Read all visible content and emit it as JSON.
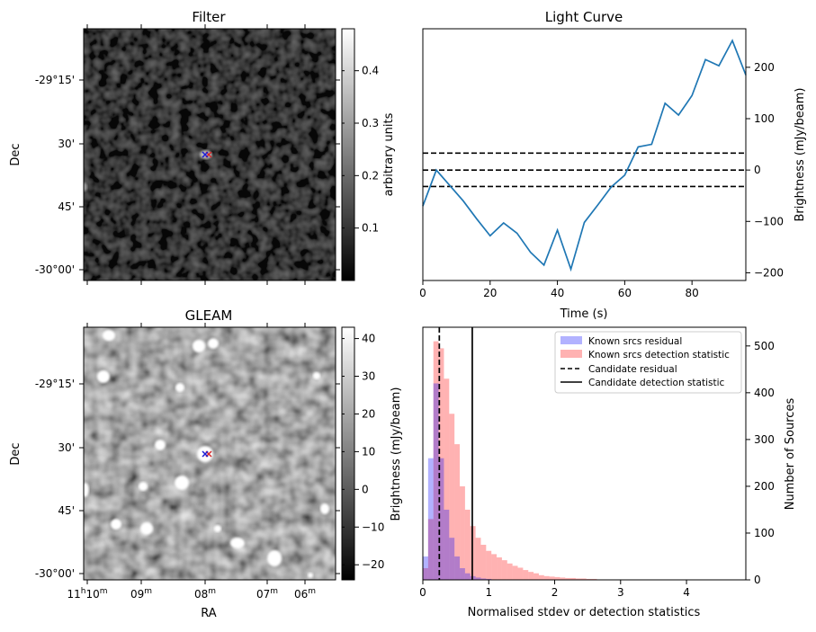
{
  "panels": {
    "filter": {
      "title": "Filter",
      "ylabel": "Dec",
      "yticks": [
        "-29°15'",
        "30'",
        "45'",
        "-30°00'"
      ],
      "colorbar": {
        "label": "arbitrary units",
        "ticks": [
          "0.1",
          "0.2",
          "0.3",
          "0.4"
        ],
        "range": [
          0,
          0.48
        ]
      },
      "markers": {
        "red": "#d62728",
        "blue": "#1f1fd6"
      }
    },
    "gleam": {
      "title": "GLEAM",
      "ylabel": "Dec",
      "xlabel": "RA",
      "yticks": [
        "-29°15'",
        "30'",
        "45'",
        "-30°00'"
      ],
      "xticks": [
        {
          "main": "11",
          "sup1": "h",
          "mid": "10",
          "sup2": "m"
        },
        {
          "main": "09",
          "sup2": "m"
        },
        {
          "main": "08",
          "sup2": "m"
        },
        {
          "main": "07",
          "sup2": "m"
        },
        {
          "main": "06",
          "sup2": "m"
        }
      ],
      "colorbar": {
        "label": "Brightness (mJy/beam)",
        "ticks": [
          "40",
          "30",
          "20",
          "10",
          "0",
          "−10",
          "−20"
        ],
        "range": [
          -24,
          43
        ]
      }
    }
  },
  "chart_data": [
    {
      "type": "line",
      "title": "Light Curve",
      "xlabel": "Time (s)",
      "ylabel": "Brightness (mJy/beam)",
      "xlim": [
        0,
        96
      ],
      "ylim": [
        -215,
        275
      ],
      "xticks": [
        0,
        20,
        40,
        60,
        80
      ],
      "yticks": [
        200,
        100,
        0,
        -100,
        -200
      ],
      "grid": false,
      "series": [
        {
          "color": "#1f77b4",
          "x": [
            0,
            4,
            8,
            12,
            16,
            20,
            24,
            28,
            32,
            36,
            40,
            44,
            48,
            52,
            56,
            60,
            64,
            68,
            72,
            76,
            80,
            84,
            88,
            92,
            96
          ],
          "y": [
            -70,
            0,
            -30,
            -60,
            -95,
            -128,
            -103,
            -123,
            -160,
            -185,
            -117,
            -193,
            -102,
            -68,
            -33,
            -10,
            45,
            50,
            130,
            107,
            145,
            215,
            203,
            252,
            185
          ]
        }
      ],
      "hlines": [
        {
          "y": 33,
          "style": "dashed",
          "color": "#000000"
        },
        {
          "y": 0,
          "style": "dashed",
          "color": "#000000"
        },
        {
          "y": -32,
          "style": "dashed",
          "color": "#000000"
        }
      ]
    },
    {
      "type": "bar",
      "xlabel": "Normalised stdev or detection statistics",
      "ylabel": "Number of Sources",
      "xlim": [
        0,
        4.9
      ],
      "ylim": [
        0,
        540
      ],
      "xticks": [
        0,
        1,
        2,
        3,
        4
      ],
      "yticks": [
        0,
        100,
        200,
        300,
        400,
        500
      ],
      "legend_position": "top-right",
      "bin_width": 0.08,
      "series": [
        {
          "name": "Known srcs residual",
          "color": "#0000ff",
          "opacity": 0.3,
          "bins": [
            0.04,
            0.12,
            0.2,
            0.28,
            0.36,
            0.44,
            0.52,
            0.6,
            0.68,
            0.76,
            0.84,
            0.92,
            1.0,
            1.08
          ],
          "values": [
            50,
            260,
            420,
            260,
            150,
            90,
            50,
            25,
            14,
            8,
            5,
            3,
            2,
            1
          ]
        },
        {
          "name": "Known srcs detection statistic",
          "color": "#ff0000",
          "opacity": 0.3,
          "bins": [
            0.04,
            0.12,
            0.2,
            0.28,
            0.36,
            0.44,
            0.52,
            0.6,
            0.68,
            0.76,
            0.84,
            0.92,
            1.0,
            1.08,
            1.16,
            1.24,
            1.32,
            1.4,
            1.48,
            1.56,
            1.64,
            1.72,
            1.8,
            1.88,
            1.96,
            2.04,
            2.12,
            2.2,
            2.28,
            2.36,
            2.44,
            2.52,
            2.6,
            2.68,
            2.76
          ],
          "values": [
            25,
            130,
            510,
            495,
            430,
            355,
            290,
            200,
            150,
            115,
            90,
            75,
            62,
            55,
            48,
            42,
            35,
            30,
            26,
            21,
            17,
            14,
            10,
            8,
            7,
            6,
            5,
            4,
            4,
            3,
            3,
            2,
            2,
            1,
            1
          ]
        }
      ],
      "vlines": [
        {
          "name": "Candidate residual",
          "x": 0.25,
          "style": "dashed",
          "color": "#000000"
        },
        {
          "name": "Candidate detection statistic",
          "x": 0.75,
          "style": "solid",
          "color": "#000000"
        }
      ]
    }
  ]
}
